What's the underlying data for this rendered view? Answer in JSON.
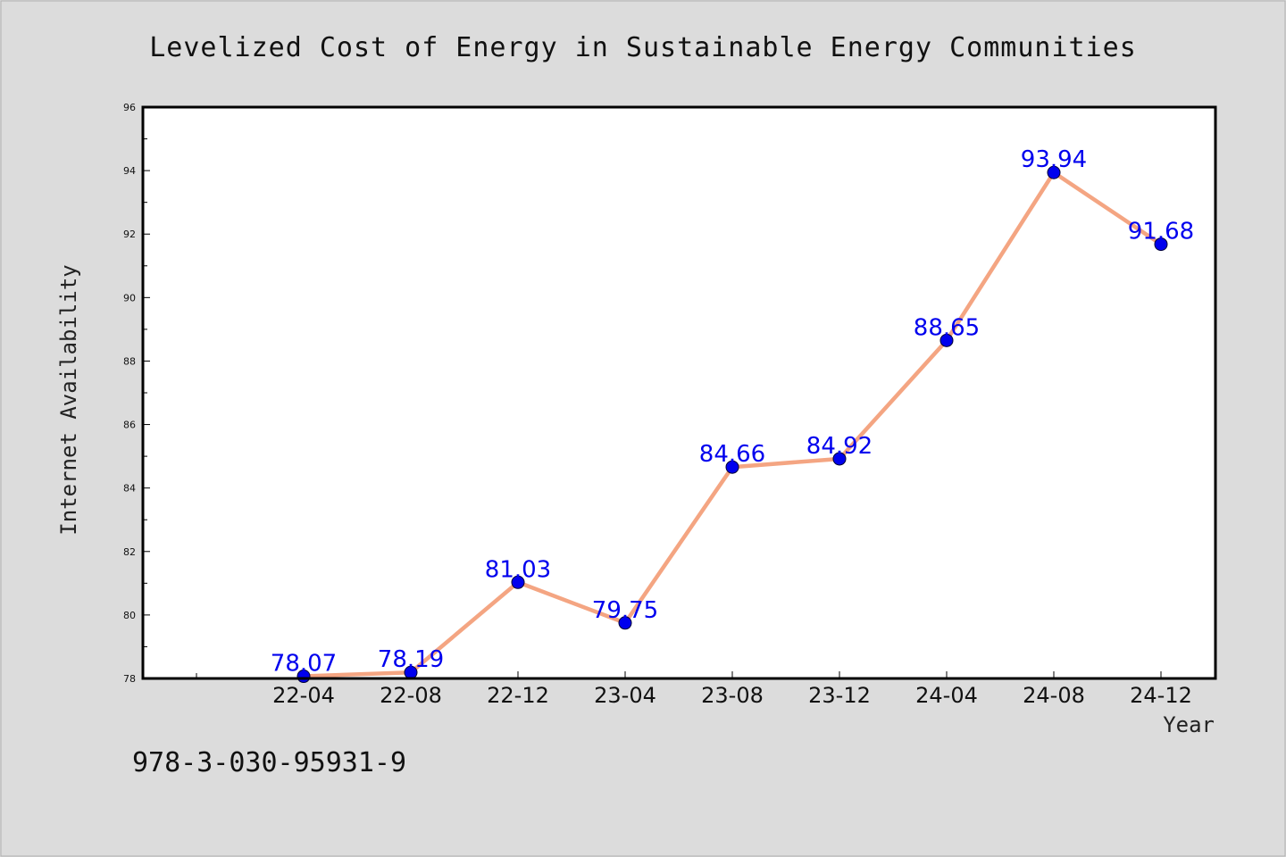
{
  "chart_data": {
    "type": "line",
    "title": "Levelized Cost of Energy in Sustainable Energy Communities",
    "xlabel": "Year",
    "ylabel": "Internet Availability",
    "categories": [
      "22-04",
      "22-08",
      "22-12",
      "23-04",
      "23-08",
      "23-12",
      "24-04",
      "24-08",
      "24-12"
    ],
    "series": [
      {
        "values": [
          78.07,
          78.19,
          81.03,
          79.75,
          84.66,
          84.92,
          88.65,
          93.94,
          91.68
        ],
        "labels": [
          "78.07",
          "78.19",
          "81.03",
          "79.75",
          "84.66",
          "84.92",
          "88.65",
          "93.94",
          "91.68"
        ]
      }
    ],
    "ylim": [
      78,
      96
    ],
    "yticks": [
      "78",
      "80",
      "82",
      "84",
      "86",
      "88",
      "90",
      "92",
      "94",
      "96"
    ],
    "grid": false,
    "line_color": "#f4a582",
    "marker_color": "#0000ee",
    "label_color": "#0000ee"
  },
  "footer": {
    "isbn": "978-3-030-95931-9"
  }
}
